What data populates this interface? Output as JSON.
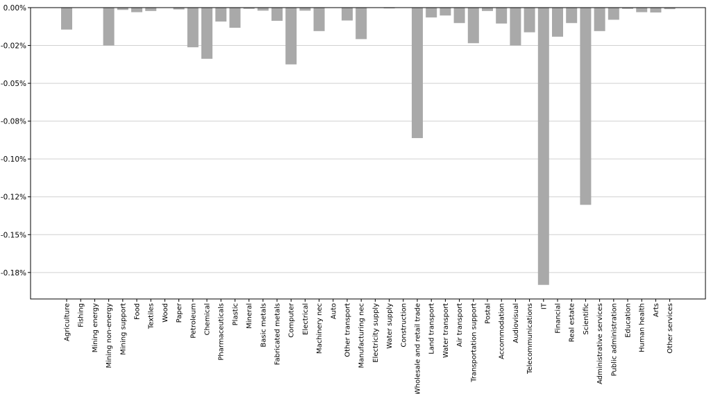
{
  "chart_data": {
    "type": "bar",
    "title": "",
    "xlabel": "",
    "ylabel": "",
    "ylim": [
      -0.1925,
      0.0
    ],
    "y_ticks": [
      0.0,
      -0.025,
      -0.05,
      -0.075,
      -0.1,
      -0.125,
      -0.15,
      -0.175
    ],
    "y_tick_labels": [
      "0.00%",
      "-0.02%",
      "-0.05%",
      "-0.08%",
      "-0.10%",
      "-0.12%",
      "-0.15%",
      "-0.18%"
    ],
    "grid": "horizontal",
    "bar_color": "#a9a9a9",
    "categories": [
      "Agriculture",
      "Fishing",
      "Mining energy",
      "Mining non-energy",
      "Mining support",
      "Food",
      "Textiles",
      "Wood",
      "Paper",
      "Petroleum",
      "Chemical",
      "Pharmaceuticals",
      "Plastic",
      "Mineral",
      "Basic metals",
      "Fabricated metals",
      "Computer",
      "Electrical",
      "Machinery nec",
      "Auto",
      "Other transport",
      "Manufacturing nec",
      "Electricity supply",
      "Water supply",
      "Construction",
      "Wholesale and retail trade",
      "Land transport",
      "Water transport",
      "Air transport",
      "Transportation support",
      "Postal",
      "Accommodation",
      "Audiovisual",
      "Telecommunications",
      "IT",
      "Financial",
      "Real estate",
      "Scientific",
      "Administrative services",
      "Public administration",
      "Education",
      "Human health",
      "Arts",
      "Other services"
    ],
    "values": [
      -0.0145,
      0.0,
      0.0,
      -0.025,
      -0.0015,
      -0.003,
      -0.0022,
      0.0,
      -0.0012,
      -0.0262,
      -0.0338,
      -0.0092,
      -0.0133,
      -0.0008,
      -0.002,
      -0.0087,
      -0.0375,
      -0.002,
      -0.0155,
      0.0,
      -0.0085,
      -0.0208,
      0.0,
      -0.0005,
      0.0,
      -0.0862,
      -0.0065,
      -0.0052,
      -0.0102,
      -0.0235,
      -0.0022,
      -0.0105,
      -0.025,
      -0.0163,
      -0.1832,
      -0.0192,
      -0.0102,
      -0.1303,
      -0.0155,
      -0.008,
      -0.0008,
      -0.003,
      -0.0032,
      -0.001
    ]
  }
}
